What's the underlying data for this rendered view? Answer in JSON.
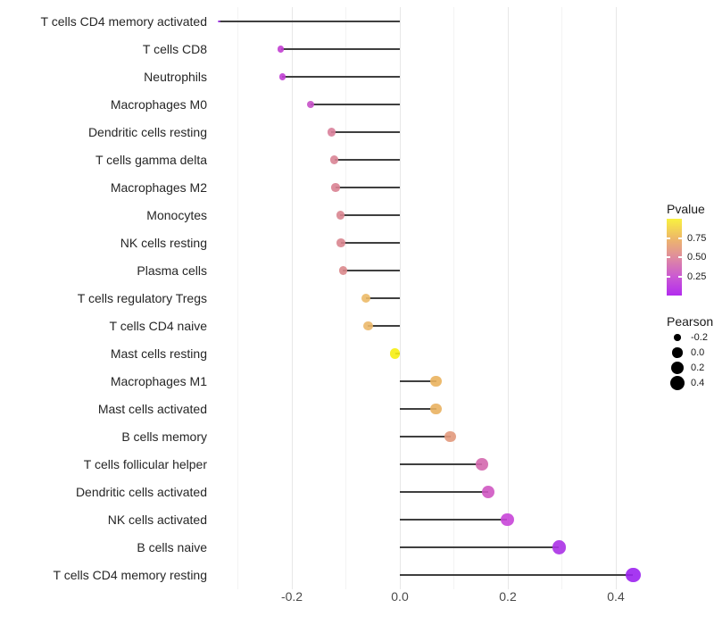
{
  "chart_data": {
    "type": "scatter",
    "variant": "lollipop-horizontal",
    "title": "",
    "xlabel": "",
    "ylabel": "",
    "categories": [
      "T cells CD4 memory activated",
      "T cells CD8",
      "Neutrophils",
      "Macrophages M0",
      "Dendritic cells resting",
      "T cells gamma delta",
      "Macrophages M2",
      "Monocytes",
      "NK cells resting",
      "Plasma cells",
      "T cells regulatory  Tregs",
      "T cells CD4 naive",
      "Mast cells resting",
      "Macrophages M1",
      "Mast cells activated",
      "B cells memory",
      "T cells follicular helper",
      "Dendritic cells activated",
      "NK cells activated",
      "B cells naive",
      "T cells CD4 memory resting"
    ],
    "series": [
      {
        "name": "Pearson",
        "values": [
          -0.335,
          -0.22,
          -0.218,
          -0.165,
          -0.127,
          -0.121,
          -0.119,
          -0.11,
          -0.109,
          -0.105,
          -0.063,
          -0.059,
          -0.009,
          0.067,
          0.067,
          0.094,
          0.152,
          0.163,
          0.199,
          0.295,
          0.432
        ]
      }
    ],
    "point_colors": [
      "#a43ae8",
      "#c23ed2",
      "#c13fd4",
      "#c750c8",
      "#d9809a",
      "#d98495",
      "#d98292",
      "#d98590",
      "#d9858f",
      "#da888c",
      "#ecba68",
      "#ebb86a",
      "#f6ee11",
      "#eab35e",
      "#e9b160",
      "#e2997c",
      "#d468ae",
      "#cf57c2",
      "#c845d8",
      "#ab32e6",
      "#9c22f0"
    ],
    "xlim": [
      -0.35,
      0.45
    ],
    "x_ticks": [
      {
        "value": -0.2,
        "label": "-0.2"
      },
      {
        "value": 0.0,
        "label": "0.0"
      },
      {
        "value": 0.2,
        "label": "0.2"
      },
      {
        "value": 0.4,
        "label": "0.4"
      }
    ],
    "grid": {
      "show": true,
      "major": [
        -0.2,
        0.0,
        0.2,
        0.4
      ],
      "minor": [
        -0.3,
        -0.1,
        0.1,
        0.3
      ]
    },
    "legend_position": "right",
    "legends": {
      "pvalue": {
        "title": "Pvalue",
        "tick_labels": [
          "0.75",
          "0.50",
          "0.25"
        ],
        "tick_fractions_from_top": [
          0.25,
          0.5,
          0.75
        ],
        "gradient_top_to_bottom": [
          "#f9f13f",
          "#eeb968",
          "#df8c9e",
          "#cb5ad2",
          "#b22cee"
        ]
      },
      "pearson": {
        "title": "Pearson",
        "entries": [
          {
            "label": "-0.2",
            "value": -0.2
          },
          {
            "label": "0.0",
            "value": 0.0
          },
          {
            "label": "0.2",
            "value": 0.2
          },
          {
            "label": "0.4",
            "value": 0.4
          }
        ],
        "dot_color": "#000000"
      }
    },
    "colors": {
      "stem": "#3f3f3f",
      "background": "#ffffff",
      "axis_text": "#4a4a4a",
      "category_text": "#262626"
    }
  }
}
